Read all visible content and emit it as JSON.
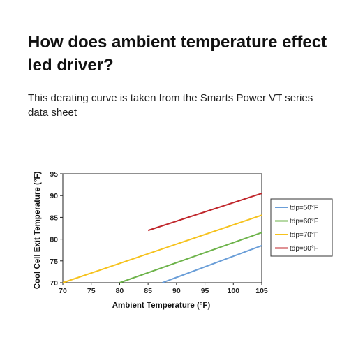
{
  "article": {
    "headline": "How does ambient temperature effect led driver?",
    "caption": "This derating curve is taken from the Smarts Power VT series data sheet"
  },
  "chart_data": {
    "type": "line",
    "title": "",
    "xlabel": "Ambient Temperature (°F)",
    "ylabel": "Cool Cell Exit Temperature (°F)",
    "xlim": [
      70,
      105
    ],
    "ylim": [
      70,
      95
    ],
    "xticks": [
      70,
      75,
      80,
      85,
      90,
      95,
      100,
      105
    ],
    "yticks": [
      70,
      75,
      80,
      85,
      90,
      95
    ],
    "grid": false,
    "legend_position": "right",
    "series": [
      {
        "name": "tdp=50°F",
        "color": "#6a9ed8",
        "x": [
          87.5,
          105
        ],
        "y": [
          70,
          78.5
        ]
      },
      {
        "name": "tdp=60°F",
        "color": "#6db34a",
        "x": [
          80,
          105
        ],
        "y": [
          70,
          81.5
        ]
      },
      {
        "name": "tdp=70°F",
        "color": "#f6c21c",
        "x": [
          70,
          105
        ],
        "y": [
          70,
          85.5
        ]
      },
      {
        "name": "tdp=80°F",
        "color": "#c0262b",
        "x": [
          85,
          105
        ],
        "y": [
          82,
          90.5
        ]
      }
    ]
  }
}
